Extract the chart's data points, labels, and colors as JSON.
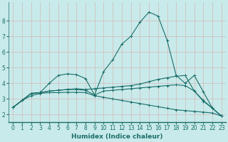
{
  "title": "",
  "xlabel": "Humidex (Indice chaleur)",
  "ylabel": "",
  "bg_color": "#c8eaea",
  "grid_color": "#d4b8b8",
  "line_color": "#1a6e6a",
  "xlim": [
    -0.5,
    23.5
  ],
  "ylim": [
    1.5,
    9.2
  ],
  "yticks": [
    2,
    3,
    4,
    5,
    6,
    7,
    8
  ],
  "xticks": [
    0,
    1,
    2,
    3,
    4,
    5,
    6,
    7,
    8,
    9,
    10,
    11,
    12,
    13,
    14,
    15,
    16,
    17,
    18,
    19,
    20,
    21,
    22,
    23
  ],
  "xtick_labels": [
    "0",
    "1",
    "2",
    "3",
    "4",
    "5",
    "6",
    "7",
    "8",
    "9",
    "10",
    "11",
    "12",
    "13",
    "14",
    "15",
    "16",
    "17",
    "18",
    "19",
    "20",
    "21",
    "22",
    "23"
  ],
  "lines": [
    {
      "x": [
        0,
        1,
        2,
        3,
        4,
        5,
        6,
        7,
        8,
        9,
        10,
        11,
        12,
        13,
        14,
        15,
        16,
        17,
        18,
        19,
        20,
        21,
        22,
        23
      ],
      "y": [
        2.45,
        2.9,
        3.35,
        3.4,
        3.5,
        3.55,
        3.6,
        3.6,
        3.55,
        3.25,
        4.75,
        5.5,
        6.5,
        7.0,
        7.9,
        8.55,
        8.3,
        6.75,
        4.5,
        4.0,
        4.5,
        3.45,
        2.4,
        1.9
      ]
    },
    {
      "x": [
        0,
        1,
        2,
        3,
        4,
        5,
        6,
        7,
        8,
        9,
        10,
        11,
        12,
        13,
        14,
        15,
        16,
        17,
        18,
        19,
        20,
        21,
        22,
        23
      ],
      "y": [
        2.45,
        2.9,
        3.35,
        3.4,
        3.5,
        3.55,
        3.6,
        3.65,
        3.6,
        3.65,
        3.7,
        3.75,
        3.8,
        3.85,
        3.95,
        4.1,
        4.25,
        4.35,
        4.45,
        4.5,
        3.5,
        2.9,
        2.4,
        1.9
      ]
    },
    {
      "x": [
        0,
        1,
        2,
        3,
        4,
        5,
        6,
        7,
        8,
        9,
        10,
        11,
        12,
        13,
        14,
        15,
        16,
        17,
        18,
        19,
        20,
        21,
        22,
        23
      ],
      "y": [
        2.45,
        2.9,
        3.35,
        3.4,
        4.0,
        4.5,
        4.6,
        4.55,
        4.3,
        3.25,
        3.5,
        3.55,
        3.6,
        3.65,
        3.7,
        3.75,
        3.8,
        3.85,
        3.9,
        3.85,
        3.5,
        2.85,
        2.4,
        1.9
      ]
    },
    {
      "x": [
        0,
        1,
        2,
        3,
        4,
        5,
        6,
        7,
        8,
        9,
        10,
        11,
        12,
        13,
        14,
        15,
        16,
        17,
        18,
        19,
        20,
        21,
        22,
        23
      ],
      "y": [
        2.45,
        2.9,
        3.2,
        3.35,
        3.4,
        3.4,
        3.42,
        3.42,
        3.4,
        3.2,
        3.1,
        3.0,
        2.9,
        2.8,
        2.7,
        2.6,
        2.5,
        2.4,
        2.3,
        2.25,
        2.2,
        2.15,
        2.1,
        1.9
      ]
    }
  ]
}
